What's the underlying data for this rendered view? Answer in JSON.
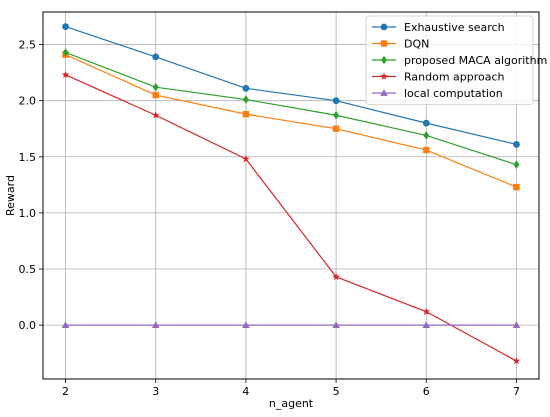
{
  "chart_data": {
    "type": "line",
    "title": "",
    "xlabel": "n_agent",
    "ylabel": "Reward",
    "x": [
      2,
      3,
      4,
      5,
      6,
      7
    ],
    "xlim": [
      1.75,
      7.25
    ],
    "ylim": [
      -0.48,
      2.79
    ],
    "xticks": [
      2,
      3,
      4,
      5,
      6,
      7
    ],
    "yticks": [
      0.0,
      0.5,
      1.0,
      1.5,
      2.0,
      2.5
    ],
    "ytick_labels": [
      "0.0",
      "0.5",
      "1.0",
      "1.5",
      "2.0",
      "2.5"
    ],
    "grid": true,
    "legend_position": "top-right",
    "series": [
      {
        "name": "Exhaustive search",
        "color": "#1f77b4",
        "marker": "circle",
        "values": [
          2.66,
          2.39,
          2.11,
          2.0,
          1.8,
          1.61
        ]
      },
      {
        "name": "DQN",
        "color": "#ff7f0e",
        "marker": "square",
        "values": [
          2.41,
          2.05,
          1.88,
          1.75,
          1.56,
          1.23
        ]
      },
      {
        "name": "proposed MACA algorithm",
        "color": "#2ca02c",
        "marker": "diamond",
        "values": [
          2.43,
          2.12,
          2.01,
          1.87,
          1.69,
          1.43
        ]
      },
      {
        "name": "Random approach",
        "color": "#d62728",
        "marker": "star",
        "values": [
          2.23,
          1.87,
          1.48,
          0.43,
          0.12,
          -0.32
        ]
      },
      {
        "name": "local computation",
        "color": "#9467bd",
        "marker": "triangle",
        "values": [
          0.0,
          0.0,
          0.0,
          0.0,
          0.0,
          0.0
        ]
      }
    ]
  }
}
